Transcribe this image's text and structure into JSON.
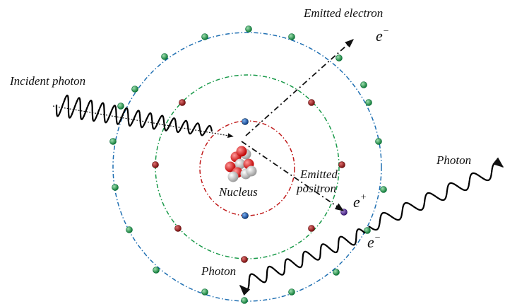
{
  "labels": {
    "emitted_electron": "Emitted electron",
    "electron_symbol": {
      "base": "e",
      "sup": "−"
    },
    "incident_photon": "Incident photon",
    "nucleus": "Nucleus",
    "emitted_positron": [
      "Emitted",
      "positron"
    ],
    "positron_symbol": {
      "base": "e",
      "sup": "+"
    },
    "photon_right": "Photon",
    "electron_symbol_2": {
      "base": "e",
      "sup": "−"
    },
    "photon_bottom": "Photon"
  }
}
